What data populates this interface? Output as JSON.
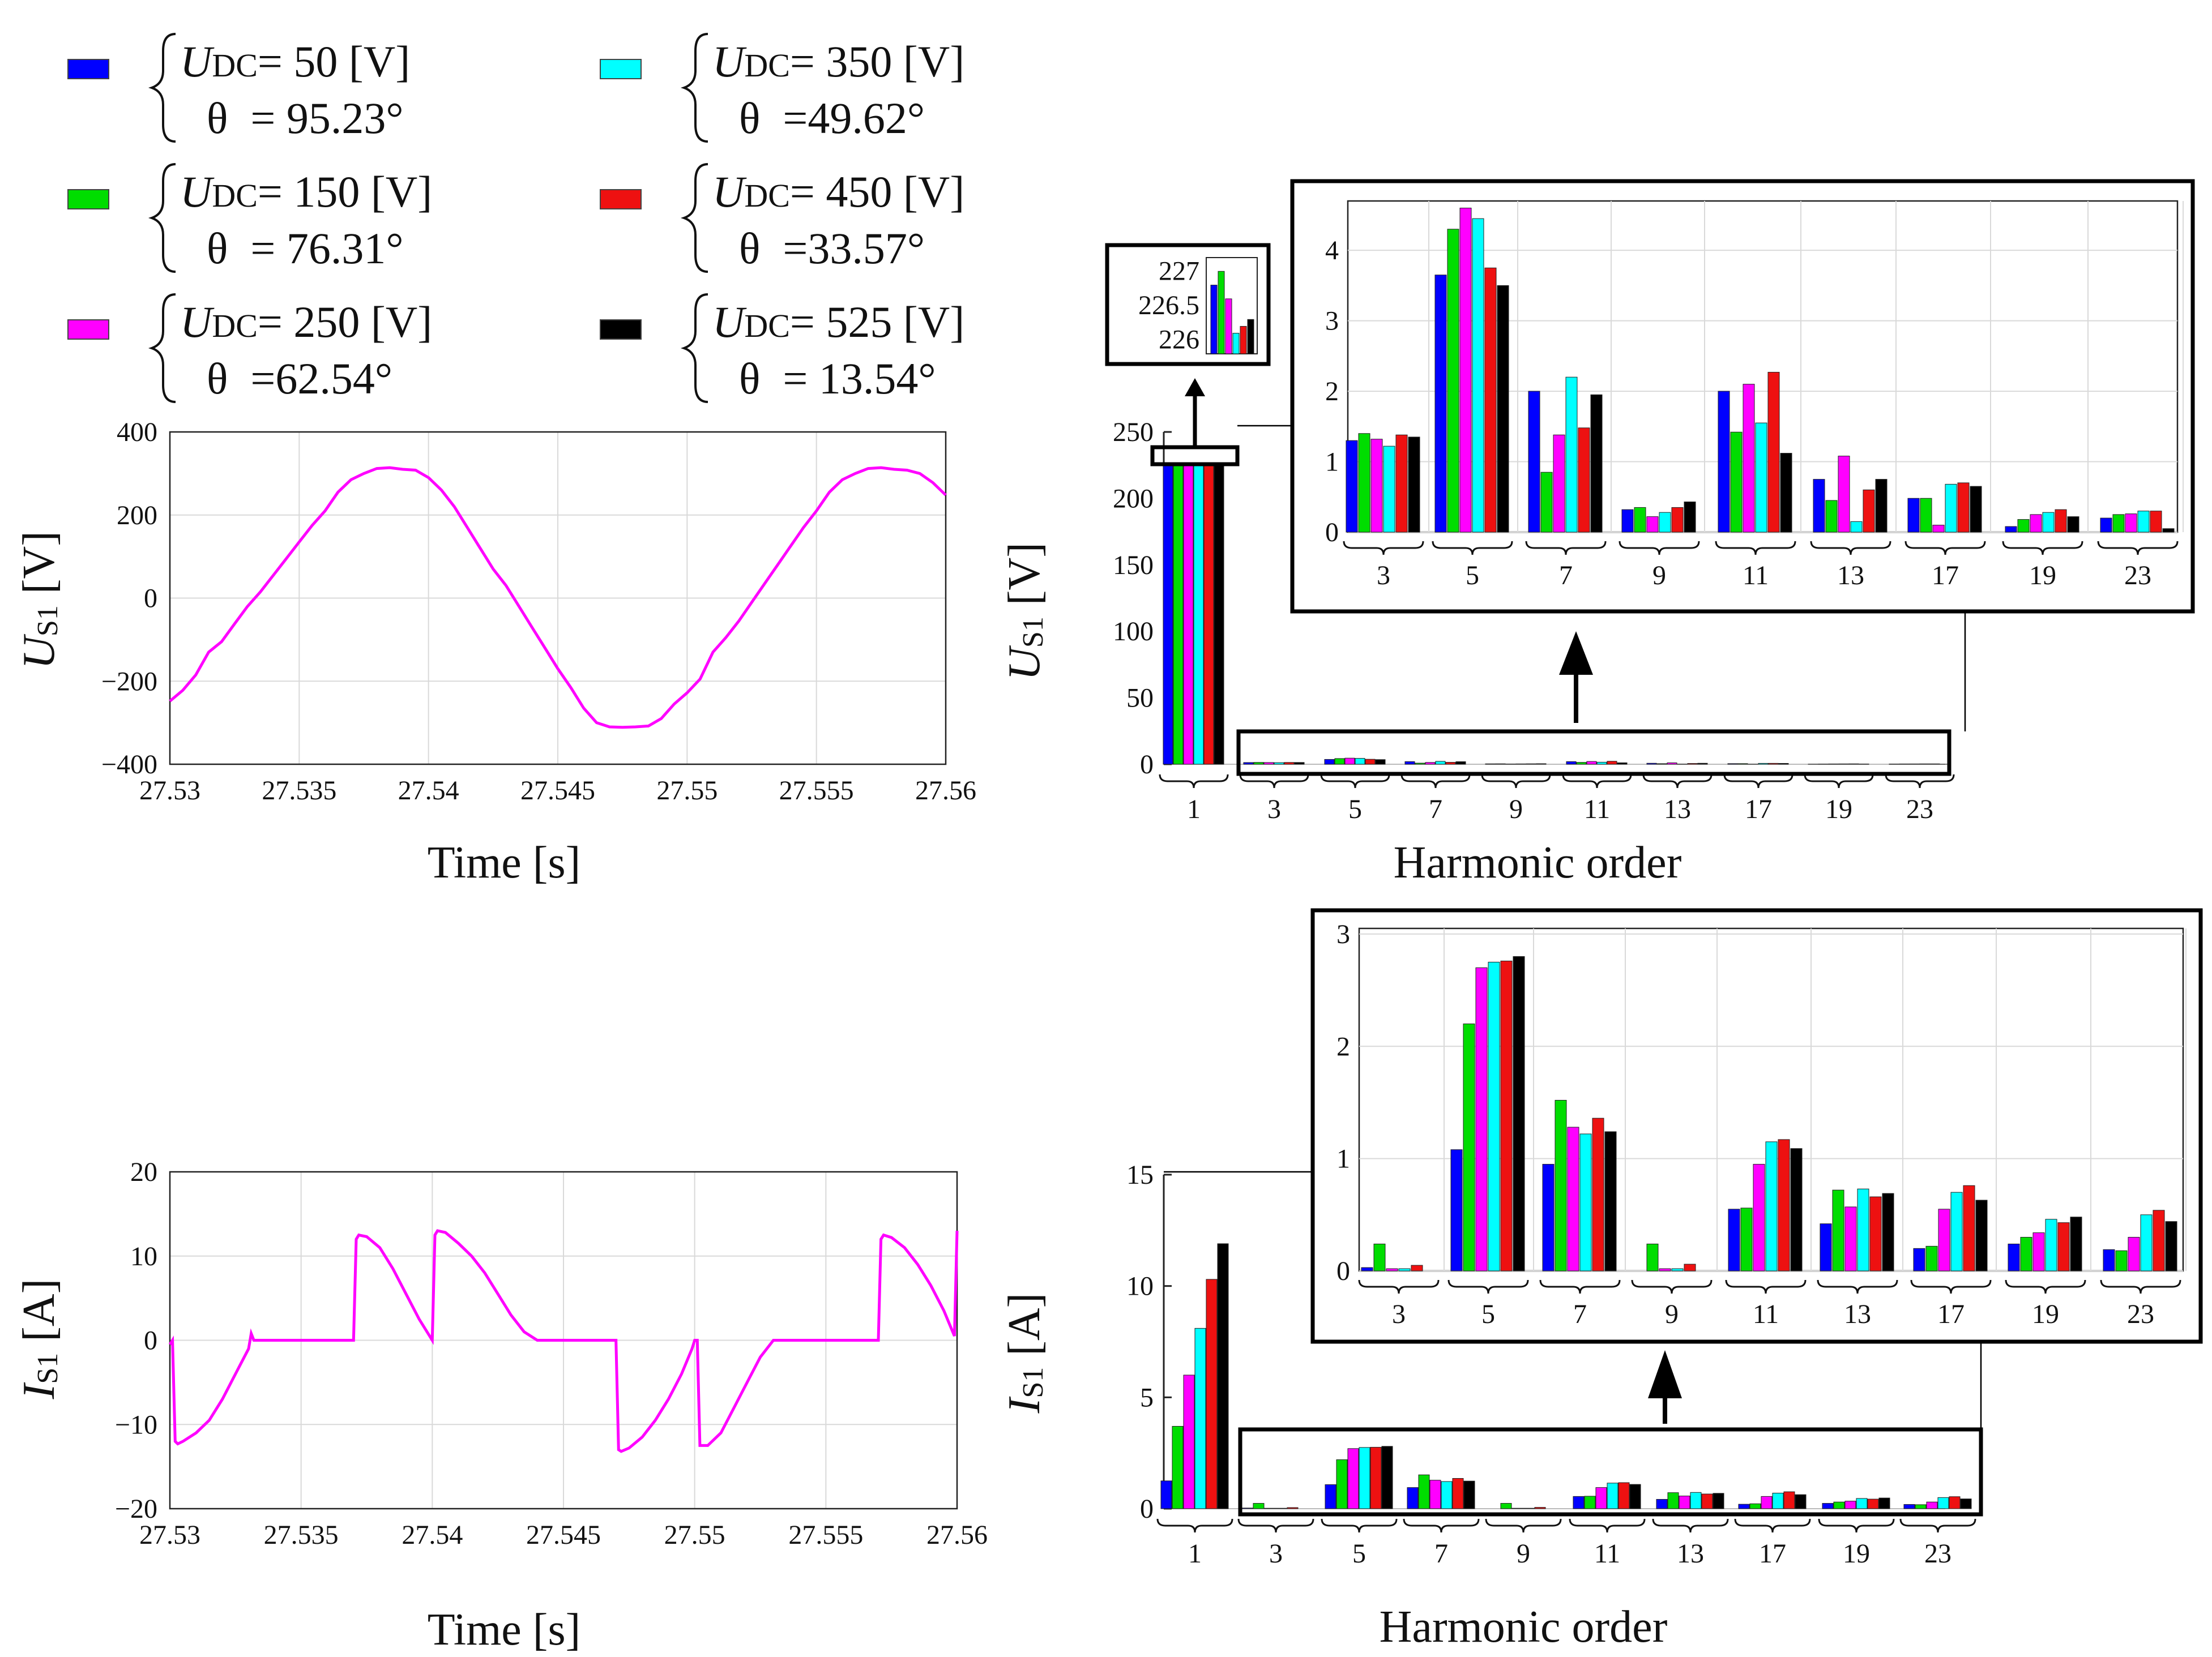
{
  "colors": {
    "series": [
      "#0000ff",
      "#00dd00",
      "#ff00ff",
      "#00ffff",
      "#ee1111",
      "#000000"
    ],
    "trace": "#ff00ff"
  },
  "legend": {
    "entries": [
      {
        "udc_label": "U",
        "udc_sub": "DC",
        "udc_eq": "= 50  [V]",
        "theta_sym": "θ",
        "theta_eq": "= 95.23°"
      },
      {
        "udc_label": "U",
        "udc_sub": "DC",
        "udc_eq": "= 150 [V]",
        "theta_sym": "θ",
        "theta_eq": "= 76.31°"
      },
      {
        "udc_label": "U",
        "udc_sub": "DC",
        "udc_eq": "= 250 [V]",
        "theta_sym": "θ",
        "theta_eq": "=62.54°"
      },
      {
        "udc_label": "U",
        "udc_sub": "DC",
        "udc_eq": "= 350 [V]",
        "theta_sym": "θ",
        "theta_eq": "=49.62°"
      },
      {
        "udc_label": "U",
        "udc_sub": "DC",
        "udc_eq": "= 450  [V]",
        "theta_sym": "θ",
        "theta_eq": "=33.57°"
      },
      {
        "udc_label": "U",
        "udc_sub": "DC",
        "udc_eq": "= 525  [V]",
        "theta_sym": "θ",
        "theta_eq": "= 13.54°"
      }
    ]
  },
  "chart_data": [
    {
      "id": "us1-time",
      "type": "line",
      "ylabel": {
        "sym": "U",
        "sub": "S1",
        "unit": " [V]"
      },
      "xlabel": "Time [s]",
      "xlim": [
        27.53,
        27.56
      ],
      "ylim": [
        -400,
        400
      ],
      "xticks": [
        "27.53",
        "27.535",
        "27.54",
        "27.545",
        "27.55",
        "27.555",
        "27.56"
      ],
      "yticks": [
        "−400",
        "−200",
        "0",
        "200",
        "400"
      ],
      "grid": true,
      "series": [
        {
          "name": "U_S1",
          "x": [
            27.53,
            27.5305,
            27.531,
            27.5315,
            27.532,
            27.5325,
            27.533,
            27.5335,
            27.534,
            27.5345,
            27.535,
            27.5355,
            27.536,
            27.5365,
            27.537,
            27.5375,
            27.538,
            27.5385,
            27.539,
            27.5395,
            27.54,
            27.5405,
            27.541,
            27.5415,
            27.542,
            27.5425,
            27.543,
            27.5435,
            27.544,
            27.5445,
            27.545,
            27.5455,
            27.546,
            27.5465,
            27.547,
            27.5475,
            27.548,
            27.5485,
            27.549,
            27.5495,
            27.55,
            27.5505,
            27.551,
            27.5515,
            27.552,
            27.5525,
            27.553,
            27.5535,
            27.554,
            27.5545,
            27.555,
            27.5555,
            27.556,
            27.5565,
            27.557,
            27.5575,
            27.558,
            27.5585,
            27.559,
            27.5595,
            27.56
          ],
          "y": [
            -248,
            -222,
            -185,
            -130,
            -105,
            -62,
            -20,
            15,
            55,
            95,
            135,
            175,
            210,
            255,
            285,
            300,
            312,
            314,
            310,
            308,
            290,
            260,
            220,
            170,
            120,
            70,
            30,
            -20,
            -70,
            -120,
            -170,
            -215,
            -265,
            -300,
            -310,
            -311,
            -310,
            -308,
            -290,
            -255,
            -228,
            -195,
            -130,
            -95,
            -55,
            -10,
            35,
            80,
            125,
            170,
            210,
            255,
            285,
            300,
            312,
            314,
            310,
            308,
            300,
            278,
            248
          ]
        }
      ]
    },
    {
      "id": "is1-time",
      "type": "line",
      "ylabel": {
        "sym": "I",
        "sub": "S1",
        "unit": " [A]"
      },
      "xlabel": "Time [s]",
      "xlim": [
        27.53,
        27.56
      ],
      "ylim": [
        -20,
        20
      ],
      "xticks": [
        "27.53",
        "27.535",
        "27.54",
        "27.545",
        "27.55",
        "27.555",
        "27.56"
      ],
      "yticks": [
        "−20",
        "−10",
        "0",
        "10",
        "20"
      ],
      "grid": true,
      "series": [
        {
          "name": "I_S1",
          "x": [
            27.53,
            27.5301,
            27.5302,
            27.5303,
            27.5305,
            27.531,
            27.5315,
            27.532,
            27.5325,
            27.533,
            27.5331,
            27.5332,
            27.534,
            27.535,
            27.536,
            27.537,
            27.5371,
            27.5372,
            27.5375,
            27.538,
            27.5385,
            27.539,
            27.5395,
            27.54,
            27.5401,
            27.5402,
            27.5405,
            27.541,
            27.5415,
            27.542,
            27.5425,
            27.543,
            27.5435,
            27.544,
            27.545,
            27.546,
            27.547,
            27.5471,
            27.5472,
            27.5475,
            27.548,
            27.5485,
            27.549,
            27.5495,
            27.5499,
            27.55,
            27.5501,
            27.5502,
            27.5505,
            27.551,
            27.5515,
            27.552,
            27.5525,
            27.553,
            27.554,
            27.555,
            27.556,
            27.557,
            27.5571,
            27.5572,
            27.5575,
            27.558,
            27.5585,
            27.559,
            27.5595,
            27.5599,
            27.56
          ],
          "y": [
            -0.5,
            0,
            -12,
            -12.3,
            -12,
            -11,
            -9.5,
            -7,
            -4,
            -1,
            0.8,
            0,
            0,
            0,
            0,
            0,
            12,
            12.5,
            12.3,
            11,
            8.5,
            5.5,
            2.5,
            0,
            12.5,
            13,
            12.8,
            11.5,
            10,
            8,
            5.5,
            3,
            1,
            0,
            0,
            0,
            0,
            -13,
            -13.2,
            -12.8,
            -11.5,
            -9.5,
            -7,
            -4,
            -1,
            0,
            0,
            -12.5,
            -12.5,
            -11,
            -8,
            -5,
            -2,
            0,
            0,
            0,
            0,
            0,
            12,
            12.5,
            12.2,
            11,
            9,
            6.5,
            3.5,
            0.5,
            13
          ]
        }
      ]
    },
    {
      "id": "us1-harm",
      "type": "bar",
      "ylabel": {
        "sym": "U",
        "sub": "S1",
        "unit": " [V]"
      },
      "xlabel": "Harmonic order",
      "categories": [
        "1",
        "3",
        "5",
        "7",
        "9",
        "11",
        "13",
        "17",
        "19",
        "23"
      ],
      "ylim": [
        0,
        250
      ],
      "yticks": [
        "0",
        "50",
        "100",
        "150",
        "200",
        "250"
      ],
      "series": [
        {
          "name": "U_DC=50",
          "values": [
            226.8,
            1.3,
            3.65,
            2.0,
            0.32,
            2.0,
            0.75,
            0.48,
            0.08,
            0.2
          ]
        },
        {
          "name": "U_DC=150",
          "values": [
            227.0,
            1.4,
            4.3,
            0.85,
            0.35,
            1.42,
            0.45,
            0.48,
            0.18,
            0.25
          ]
        },
        {
          "name": "U_DC=250",
          "values": [
            226.6,
            1.32,
            4.6,
            1.38,
            0.22,
            2.1,
            1.08,
            0.1,
            0.25,
            0.26
          ]
        },
        {
          "name": "U_DC=350",
          "values": [
            226.1,
            1.22,
            4.45,
            2.2,
            0.28,
            1.55,
            0.15,
            0.68,
            0.28,
            0.3
          ]
        },
        {
          "name": "U_DC=450",
          "values": [
            226.2,
            1.38,
            3.75,
            1.48,
            0.35,
            2.27,
            0.6,
            0.7,
            0.32,
            0.3
          ]
        },
        {
          "name": "U_DC=525",
          "values": [
            226.3,
            1.35,
            3.5,
            1.95,
            0.43,
            1.12,
            0.75,
            0.65,
            0.22,
            0.05
          ]
        }
      ],
      "inset": {
        "ylim": [
          0,
          4.7
        ],
        "yticks": [
          "0",
          "1",
          "2",
          "3",
          "4"
        ],
        "categories": [
          "3",
          "5",
          "7",
          "9",
          "11",
          "13",
          "17",
          "19",
          "23"
        ]
      },
      "zoom": {
        "ylim": [
          225.8,
          227.2
        ],
        "yticks": [
          "227",
          "226.5",
          "226"
        ]
      }
    },
    {
      "id": "is1-harm",
      "type": "bar",
      "ylabel": {
        "sym": "I",
        "sub": "S1",
        "unit": " [A]"
      },
      "xlabel": "Harmonic order",
      "categories": [
        "1",
        "3",
        "5",
        "7",
        "9",
        "11",
        "13",
        "17",
        "19",
        "23"
      ],
      "ylim": [
        0,
        15
      ],
      "yticks": [
        "0",
        "5",
        "10",
        "15"
      ],
      "series": [
        {
          "name": "U_DC=50",
          "values": [
            1.25,
            0.03,
            1.08,
            0.95,
            0.0,
            0.55,
            0.42,
            0.2,
            0.24,
            0.19
          ]
        },
        {
          "name": "U_DC=150",
          "values": [
            3.7,
            0.24,
            2.2,
            1.52,
            0.24,
            0.56,
            0.72,
            0.22,
            0.3,
            0.18
          ]
        },
        {
          "name": "U_DC=250",
          "values": [
            6.0,
            0.02,
            2.7,
            1.28,
            0.02,
            0.95,
            0.57,
            0.55,
            0.34,
            0.3
          ]
        },
        {
          "name": "U_DC=350",
          "values": [
            8.1,
            0.02,
            2.75,
            1.22,
            0.02,
            1.15,
            0.73,
            0.7,
            0.46,
            0.5
          ]
        },
        {
          "name": "U_DC=450",
          "values": [
            10.3,
            0.05,
            2.76,
            1.36,
            0.06,
            1.17,
            0.66,
            0.76,
            0.43,
            0.54
          ]
        },
        {
          "name": "U_DC=525",
          "values": [
            11.9,
            0.0,
            2.8,
            1.24,
            0.0,
            1.09,
            0.69,
            0.63,
            0.48,
            0.44
          ]
        }
      ],
      "inset": {
        "ylim": [
          0,
          3.05
        ],
        "yticks": [
          "0",
          "1",
          "2",
          "3"
        ],
        "categories": [
          "3",
          "5",
          "7",
          "9",
          "11",
          "13",
          "17",
          "19",
          "23"
        ]
      }
    }
  ]
}
